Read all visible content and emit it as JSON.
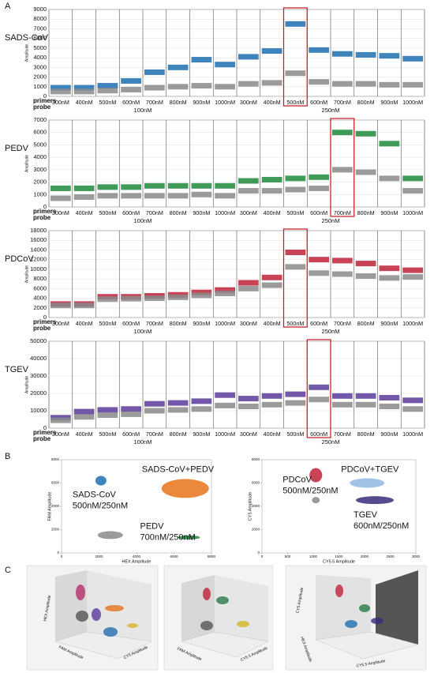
{
  "panel_labels": [
    "A",
    "B",
    "C"
  ],
  "chart_data": [
    {
      "type": "strip",
      "title": "SADS-CoV",
      "ylabel": "Amplitude",
      "categories": [
        "300nM",
        "400nM",
        "500nM",
        "600nM",
        "700nM",
        "800nM",
        "900nM",
        "1000nM",
        "300nM",
        "400nM",
        "500nM",
        "600nM",
        "700nM",
        "800nM",
        "900nM",
        "1000nM"
      ],
      "row_labels": [
        "primers",
        "probe"
      ],
      "group_labels": [
        "100nM",
        "250nM"
      ],
      "highlight": 10,
      "series": [
        {
          "color": "#1f6fb0",
          "values": [
            900,
            900,
            1100,
            1600,
            2500,
            3000,
            3800,
            3300,
            4100,
            4700,
            7500,
            4800,
            4400,
            4300,
            4200,
            3900
          ]
        },
        {
          "color": "#8a8a8a",
          "values": [
            500,
            500,
            600,
            700,
            900,
            1000,
            1100,
            1000,
            1300,
            1400,
            2400,
            1500,
            1300,
            1300,
            1200,
            1200
          ]
        }
      ],
      "ylim": [
        0,
        9000
      ],
      "yticks": [
        0,
        1000,
        2000,
        3000,
        4000,
        5000,
        6000,
        7000,
        8000,
        9000
      ],
      "grid": true
    },
    {
      "type": "strip",
      "title": "PEDV",
      "ylabel": "Amplitude",
      "categories": [
        "300nM",
        "400nM",
        "500nM",
        "600nM",
        "700nM",
        "800nM",
        "900nM",
        "1000nM",
        "300nM",
        "400nM",
        "500nM",
        "600nM",
        "700nM",
        "800nM",
        "900nM",
        "1000nM"
      ],
      "row_labels": [
        "primers",
        "probe"
      ],
      "group_labels": [
        "100nM",
        "250nM"
      ],
      "highlight": 12,
      "series": [
        {
          "color": "#1e8a3c",
          "values": [
            1500,
            1500,
            1600,
            1600,
            1700,
            1700,
            1700,
            1700,
            2100,
            2200,
            2300,
            2400,
            6000,
            5900,
            5100,
            2300
          ]
        },
        {
          "color": "#8a8a8a",
          "values": [
            700,
            800,
            900,
            900,
            900,
            900,
            1000,
            900,
            1300,
            1300,
            1400,
            1500,
            3000,
            2800,
            2300,
            1300
          ]
        }
      ],
      "ylim": [
        0,
        7000
      ],
      "yticks": [
        0,
        1000,
        2000,
        3000,
        4000,
        5000,
        6000,
        7000
      ],
      "grid": true
    },
    {
      "type": "strip",
      "title": "PDCoV",
      "ylabel": "Amplitude",
      "categories": [
        "300nM",
        "400nM",
        "500nM",
        "600nM",
        "700nM",
        "800nM",
        "900nM",
        "1000nM",
        "300nM",
        "400nM",
        "500nM",
        "600nM",
        "700nM",
        "800nM",
        "900nM",
        "1000nM"
      ],
      "row_labels": [
        "primers",
        "probe"
      ],
      "group_labels": [
        "100nM",
        "250nM"
      ],
      "highlight": 10,
      "series": [
        {
          "color": "#c0223a",
          "values": [
            2800,
            2800,
            4300,
            4300,
            4500,
            4700,
            5200,
            5700,
            7200,
            8300,
            13500,
            12000,
            11800,
            11200,
            10200,
            9800
          ]
        },
        {
          "color": "#8a8a8a",
          "values": [
            2500,
            2500,
            3800,
            3900,
            4000,
            4200,
            4600,
            5000,
            6000,
            6700,
            10500,
            9200,
            9000,
            8600,
            8200,
            8400
          ]
        }
      ],
      "ylim": [
        0,
        18000
      ],
      "yticks": [
        0,
        2000,
        4000,
        6000,
        8000,
        10000,
        12000,
        14000,
        16000,
        18000
      ],
      "grid": true
    },
    {
      "type": "strip",
      "title": "TGEV",
      "ylabel": "Amplitude",
      "categories": [
        "300nM",
        "400nM",
        "500nM",
        "600nM",
        "700nM",
        "800nM",
        "900nM",
        "1000nM",
        "300nM",
        "400nM",
        "500nM",
        "600nM",
        "700nM",
        "800nM",
        "900nM",
        "1000nM"
      ],
      "row_labels": [
        "primers",
        "probe"
      ],
      "group_labels": [
        "100nM",
        "250nM"
      ],
      "highlight": 11,
      "series": [
        {
          "color": "#5a3a9a",
          "values": [
            6000,
            9500,
            10500,
            11000,
            14000,
            14500,
            15500,
            19000,
            17000,
            18500,
            19500,
            23500,
            18500,
            18500,
            17500,
            16000
          ]
        },
        {
          "color": "#8a8a8a",
          "values": [
            4500,
            6500,
            7500,
            8000,
            10000,
            10500,
            11000,
            13000,
            12500,
            13500,
            14500,
            16500,
            13500,
            13500,
            12500,
            11000
          ]
        }
      ],
      "ylim": [
        0,
        50000
      ],
      "yticks": [
        0,
        10000,
        20000,
        30000,
        40000,
        50000
      ],
      "grid": true
    },
    {
      "type": "scatter",
      "xlabel": "HEX Amplitude",
      "ylabel": "FAM Amplitude",
      "xlim": [
        0,
        8000
      ],
      "ylim": [
        0,
        8000
      ],
      "xticks": [
        0,
        2000,
        4000,
        6000,
        8000
      ],
      "yticks": [
        0,
        2000,
        4000,
        6000,
        8000
      ],
      "series": [
        {
          "name": "SADS-CoV",
          "conc": "500nM/250nM",
          "color": "#1f6fb0",
          "x": 2100,
          "y": 6200
        },
        {
          "name": "SADS-CoV+PEDV",
          "conc": null,
          "color": "#e8731a",
          "x": 6600,
          "y": 5530
        },
        {
          "name": "PEDV",
          "conc": "700nM/250nM",
          "color": "#1e8a3c",
          "x": 6800,
          "y": 1330
        },
        {
          "name": null,
          "conc": null,
          "color": "#8a8a8a",
          "x": 2600,
          "y": 1530
        }
      ]
    },
    {
      "type": "scatter",
      "xlabel": "CY5.5 Amplitude",
      "ylabel": "CY5 Amplitude",
      "xlim": [
        0,
        3000
      ],
      "ylim": [
        0,
        8000
      ],
      "xticks": [
        0,
        500,
        1000,
        1500,
        2000,
        2500,
        3000
      ],
      "yticks": [
        0,
        2000,
        4000,
        6000,
        8000
      ],
      "series": [
        {
          "name": "PDCoV",
          "conc": "500nM/250nM",
          "color": "#c0223a",
          "x": 1050,
          "y": 6670
        },
        {
          "name": "PDCoV+TGEV",
          "conc": null,
          "color": "#8fb8e0",
          "x": 2050,
          "y": 6000
        },
        {
          "name": "TGEV",
          "conc": "600nM/250nM",
          "color": "#3b2a7a",
          "x": 2200,
          "y": 4530
        },
        {
          "name": null,
          "conc": null,
          "color": "#8a8a8a",
          "x": 1050,
          "y": 4530
        }
      ]
    }
  ],
  "panel_c": {
    "plots": [
      {
        "axes": [
          "HEX Amplitude",
          "FAM Amplitude",
          "CY5 Amplitude"
        ]
      },
      {
        "axes": [
          "FAM Amplitude",
          "CY5.5 Amplitude"
        ]
      },
      {
        "axes": [
          "CY5 Amplitude",
          "HEX Amplitude",
          "CY5.5 Amplitude"
        ]
      }
    ]
  }
}
